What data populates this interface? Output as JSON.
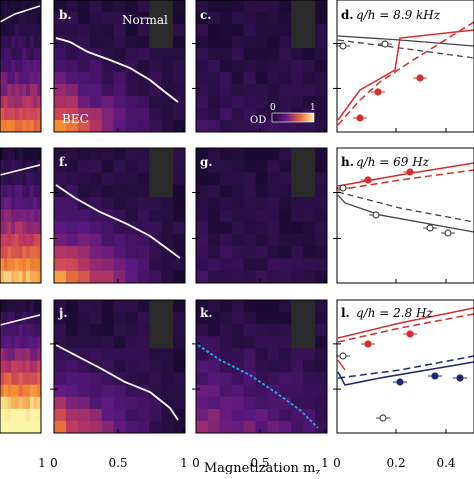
{
  "figure": {
    "x_axis_label": "Magnetization m",
    "x_axis_subscript": "z",
    "rows": [
      {
        "labels": [
          "",
          "b.",
          "c.",
          "d."
        ],
        "annotation": "q/h = 8.9 kHz",
        "heat_text": {
          "normal": "Normal",
          "bec": "BEC"
        },
        "colorbar": {
          "label": "OD",
          "min": "0",
          "max": "1"
        }
      },
      {
        "labels": [
          "",
          "f.",
          "g.",
          "h."
        ],
        "annotation": "q/h = 69 Hz"
      },
      {
        "labels": [
          "",
          "j.",
          "k.",
          "l."
        ],
        "annotation": "q/h = 2.8 Hz"
      }
    ],
    "x_ticks_heatmap": [
      "1",
      "0",
      "0.5",
      "1",
      "0",
      "0.5",
      "1"
    ],
    "x_ticks_line": [
      "0",
      "0.2",
      "0.4"
    ]
  },
  "colors": {
    "heat_low": "#1a0b33",
    "heat_high": "#fdf5a8",
    "red": "#d0302f",
    "dark_gray": "#444444",
    "navy": "#1c2a6b",
    "blue_dotted": "#2a9bdc"
  }
}
